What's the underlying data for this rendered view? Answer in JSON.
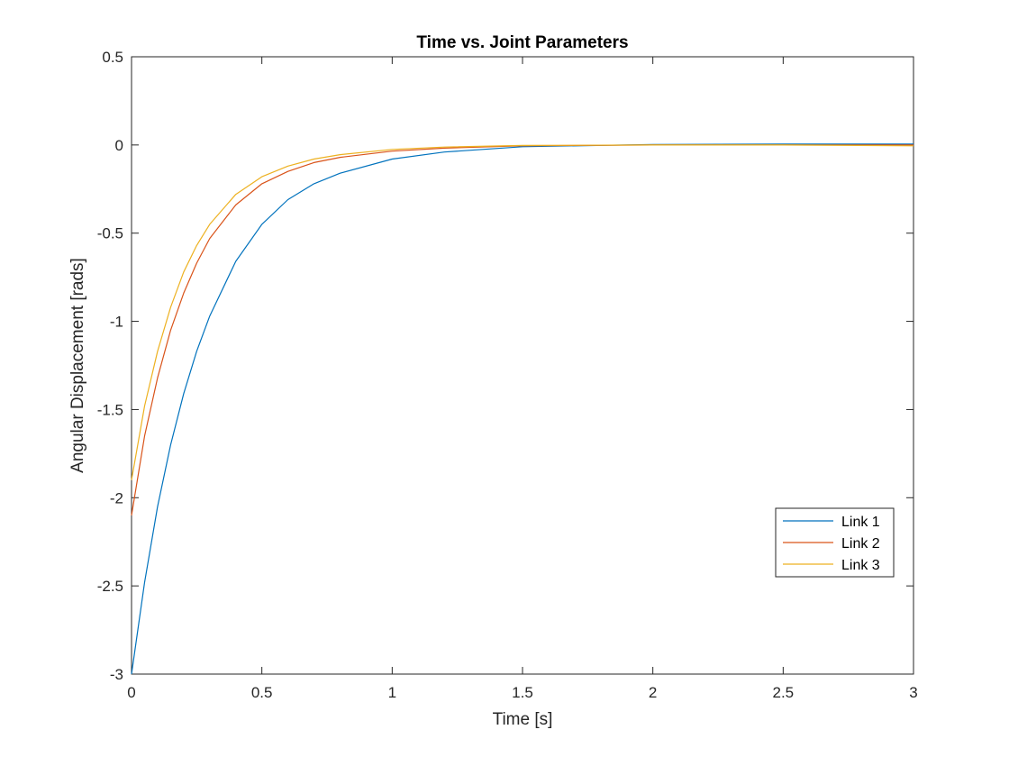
{
  "chart_data": {
    "type": "line",
    "title": "Time vs. Joint Parameters",
    "xlabel": "Time [s]",
    "ylabel": "Angular Displacement [rads]",
    "xlim": [
      0,
      3
    ],
    "ylim": [
      -3,
      0.5
    ],
    "xticks": [
      0,
      0.5,
      1,
      1.5,
      2,
      2.5,
      3
    ],
    "xtick_labels": [
      "0",
      "0.5",
      "1",
      "1.5",
      "2",
      "2.5",
      "3"
    ],
    "yticks": [
      -3,
      -2.5,
      -2,
      -1.5,
      -1,
      -0.5,
      0,
      0.5
    ],
    "ytick_labels": [
      "-3",
      "-2.5",
      "-2",
      "-1.5",
      "-1",
      "-0.5",
      "0",
      "0.5"
    ],
    "grid": false,
    "legend_position": "lower-right",
    "x": [
      0,
      0.05,
      0.1,
      0.15,
      0.2,
      0.25,
      0.3,
      0.4,
      0.5,
      0.6,
      0.7,
      0.8,
      1.0,
      1.2,
      1.5,
      2.0,
      2.5,
      3.0
    ],
    "series": [
      {
        "name": "Link 1",
        "color": "#0072BD",
        "values": [
          -3.0,
          -2.48,
          -2.05,
          -1.7,
          -1.41,
          -1.17,
          -0.97,
          -0.66,
          -0.45,
          -0.31,
          -0.22,
          -0.16,
          -0.08,
          -0.04,
          -0.01,
          0.003,
          0.005,
          0.005
        ]
      },
      {
        "name": "Link 2",
        "color": "#D95319",
        "values": [
          -2.1,
          -1.65,
          -1.32,
          -1.05,
          -0.84,
          -0.67,
          -0.53,
          -0.34,
          -0.22,
          -0.15,
          -0.1,
          -0.07,
          -0.035,
          -0.018,
          -0.005,
          0.0,
          0.0,
          0.0
        ]
      },
      {
        "name": "Link 3",
        "color": "#EDB120",
        "values": [
          -1.9,
          -1.48,
          -1.17,
          -0.92,
          -0.72,
          -0.57,
          -0.45,
          -0.28,
          -0.18,
          -0.12,
          -0.08,
          -0.055,
          -0.025,
          -0.012,
          -0.003,
          0.0,
          0.0,
          -0.005
        ]
      }
    ]
  }
}
